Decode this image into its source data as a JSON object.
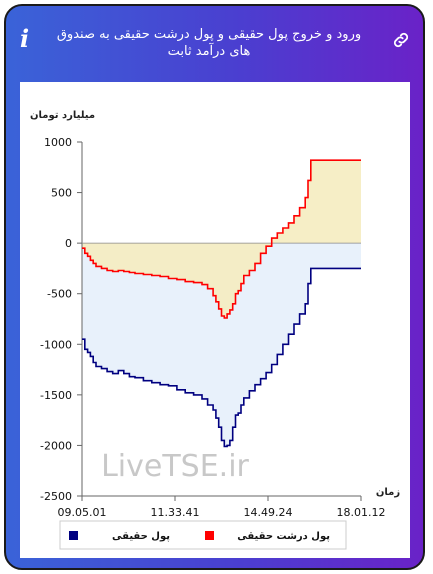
{
  "header": {
    "title": "ورود و خروج پول حقیقی و پول درشت حقیقی به صندوق های درآمد ثابت",
    "info_icon": "info-icon",
    "link_icon": "link-icon"
  },
  "colors": {
    "card_gradient_start": "#3a63d8",
    "card_gradient_end": "#6a22c8",
    "real_money": "#000080",
    "big_real_money": "#ff0000",
    "area_positive": "#f5ecc0",
    "area_negative": "#e8f1fb"
  },
  "watermark": "LiveTSE.ir",
  "chart_data": {
    "type": "line",
    "title": "",
    "ylabel": "میلیارد تومان",
    "xlabel": "زمان",
    "ylim": [
      -2500,
      1000
    ],
    "yticks": [
      "1000",
      "500",
      "0",
      "-500",
      "-1000",
      "-1500",
      "-2000",
      "-2500"
    ],
    "x_ticks": [
      "09.05.01",
      "11.33.41",
      "14.49.24",
      "18.01.12"
    ],
    "x_domain": [
      0,
      100
    ],
    "legend_position": "bottom",
    "series": [
      {
        "name": "پول حقیقی",
        "color": "#000080",
        "x": [
          0,
          1,
          2,
          3,
          4,
          5,
          7,
          9,
          11,
          13,
          15,
          17,
          19,
          22,
          25,
          28,
          31,
          34,
          37,
          40,
          43,
          45,
          47,
          48,
          49,
          50,
          51,
          52,
          53,
          54,
          55,
          56,
          57,
          58,
          60,
          62,
          64,
          66,
          68,
          70,
          72,
          74,
          76,
          78,
          80,
          81,
          82,
          84,
          86,
          88,
          90,
          92,
          94,
          96,
          98,
          100
        ],
        "y": [
          -950,
          -1050,
          -1080,
          -1120,
          -1180,
          -1220,
          -1240,
          -1270,
          -1290,
          -1260,
          -1290,
          -1320,
          -1330,
          -1360,
          -1380,
          -1400,
          -1410,
          -1450,
          -1480,
          -1500,
          -1540,
          -1600,
          -1650,
          -1730,
          -1820,
          -1950,
          -2010,
          -2000,
          -1950,
          -1820,
          -1700,
          -1680,
          -1600,
          -1530,
          -1460,
          -1400,
          -1340,
          -1280,
          -1200,
          -1100,
          -1000,
          -900,
          -800,
          -700,
          -600,
          -400,
          -250,
          -250,
          -250,
          -250,
          -250,
          -250,
          -250,
          -250,
          -250,
          -250
        ]
      },
      {
        "name": "پول درشت حقیقی",
        "color": "#ff0000",
        "x": [
          0,
          1,
          2,
          3,
          4,
          5,
          7,
          9,
          11,
          13,
          15,
          17,
          19,
          22,
          25,
          28,
          31,
          34,
          37,
          40,
          43,
          45,
          47,
          48,
          49,
          50,
          51,
          52,
          53,
          54,
          55,
          56,
          57,
          58,
          60,
          62,
          64,
          66,
          68,
          70,
          72,
          74,
          76,
          78,
          80,
          81,
          82,
          84,
          86,
          88,
          90,
          92,
          94,
          96,
          98,
          100
        ],
        "y": [
          -50,
          -100,
          -130,
          -170,
          -200,
          -230,
          -250,
          -270,
          -280,
          -270,
          -280,
          -290,
          -300,
          -310,
          -320,
          -330,
          -350,
          -360,
          -380,
          -390,
          -410,
          -450,
          -520,
          -580,
          -650,
          -720,
          -740,
          -700,
          -660,
          -600,
          -500,
          -470,
          -400,
          -320,
          -270,
          -200,
          -100,
          -30,
          50,
          100,
          150,
          200,
          270,
          350,
          450,
          620,
          820,
          820,
          820,
          820,
          820,
          820,
          820,
          820,
          820,
          820
        ]
      }
    ]
  }
}
